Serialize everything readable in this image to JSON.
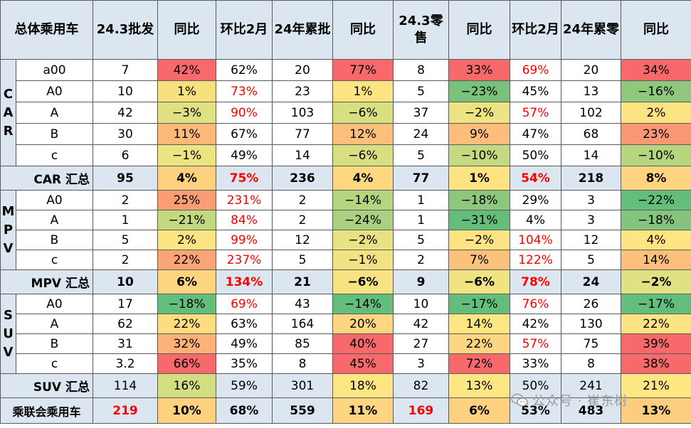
{
  "header": [
    "总体乘用车",
    "24.3批发",
    "同比",
    "环比2月",
    "24年累批",
    "同比",
    "24.3零售",
    "同比",
    "环比2月",
    "24年累零",
    "同比"
  ],
  "groups": [
    {
      "side": [
        "C",
        "A",
        "R"
      ],
      "rows": [
        {
          "label": "a00",
          "c": [
            {
              "v": "7"
            },
            {
              "v": "42%",
              "bg": "#f8696b"
            },
            {
              "v": "62%"
            },
            {
              "v": "20"
            },
            {
              "v": "77%",
              "bg": "#f8696b"
            },
            {
              "v": "8"
            },
            {
              "v": "33%",
              "bg": "#f8696b"
            },
            {
              "v": "69%",
              "red": true
            },
            {
              "v": "20"
            },
            {
              "v": "34%",
              "bg": "#f8696b"
            }
          ]
        },
        {
          "label": "A0",
          "c": [
            {
              "v": "10"
            },
            {
              "v": "1%",
              "bg": "#f9e07f"
            },
            {
              "v": "73%",
              "red": true
            },
            {
              "v": "23"
            },
            {
              "v": "1%",
              "bg": "#fde483"
            },
            {
              "v": "5"
            },
            {
              "v": "−23%",
              "bg": "#7ac17c"
            },
            {
              "v": "45%"
            },
            {
              "v": "13"
            },
            {
              "v": "−16%",
              "bg": "#8fc87d"
            }
          ]
        },
        {
          "label": "A",
          "c": [
            {
              "v": "42"
            },
            {
              "v": "−3%",
              "bg": "#dfe182"
            },
            {
              "v": "90%",
              "red": true
            },
            {
              "v": "103"
            },
            {
              "v": "−6%",
              "bg": "#d8df81"
            },
            {
              "v": "37"
            },
            {
              "v": "−2%",
              "bg": "#eee383"
            },
            {
              "v": "57%",
              "red": true
            },
            {
              "v": "102"
            },
            {
              "v": "2%",
              "bg": "#fee382"
            }
          ]
        },
        {
          "label": "B",
          "c": [
            {
              "v": "30"
            },
            {
              "v": "11%",
              "bg": "#fcb978"
            },
            {
              "v": "67%"
            },
            {
              "v": "77"
            },
            {
              "v": "12%",
              "bg": "#fdc07c"
            },
            {
              "v": "24"
            },
            {
              "v": "9%",
              "bg": "#fdbe7b"
            },
            {
              "v": "47%"
            },
            {
              "v": "68"
            },
            {
              "v": "23%",
              "bg": "#fa9774"
            }
          ]
        },
        {
          "label": "c",
          "c": [
            {
              "v": "6"
            },
            {
              "v": "−1%",
              "bg": "#ece382"
            },
            {
              "v": "49%"
            },
            {
              "v": "14"
            },
            {
              "v": "−6%",
              "bg": "#d8df81"
            },
            {
              "v": "5"
            },
            {
              "v": "−10%",
              "bg": "#c4d980"
            },
            {
              "v": "50%"
            },
            {
              "v": "14"
            },
            {
              "v": "−10%",
              "bg": "#b6d57f"
            }
          ]
        }
      ],
      "total": {
        "label": "CAR 汇总",
        "c": [
          {
            "v": "95"
          },
          {
            "v": "4%",
            "bg": "#fdd17f"
          },
          {
            "v": "75%",
            "red": true
          },
          {
            "v": "236"
          },
          {
            "v": "4%",
            "bg": "#fdd881"
          },
          {
            "v": "77"
          },
          {
            "v": "1%",
            "bg": "#fee382"
          },
          {
            "v": "54%",
            "red": true
          },
          {
            "v": "218"
          },
          {
            "v": "8%",
            "bg": "#fed480"
          }
        ]
      }
    },
    {
      "side": [
        "M",
        "P",
        "V"
      ],
      "rows": [
        {
          "label": "A0",
          "c": [
            {
              "v": "2"
            },
            {
              "v": "25%",
              "bg": "#fa9d75"
            },
            {
              "v": "231%",
              "red": true
            },
            {
              "v": "2"
            },
            {
              "v": "−14%",
              "bg": "#b6d57f"
            },
            {
              "v": "1"
            },
            {
              "v": "−18%",
              "bg": "#8cc77d"
            },
            {
              "v": "29%"
            },
            {
              "v": "3"
            },
            {
              "v": "−22%",
              "bg": "#63be7b"
            }
          ]
        },
        {
          "label": "A",
          "c": [
            {
              "v": "1"
            },
            {
              "v": "−21%",
              "bg": "#c3d980"
            },
            {
              "v": "84%",
              "red": true
            },
            {
              "v": "2"
            },
            {
              "v": "−24%",
              "bg": "#a9d17f"
            },
            {
              "v": "1"
            },
            {
              "v": "−31%",
              "bg": "#63be7b"
            },
            {
              "v": "4%"
            },
            {
              "v": "3"
            },
            {
              "v": "−18%",
              "bg": "#85c47c"
            }
          ]
        },
        {
          "label": "B",
          "c": [
            {
              "v": "5"
            },
            {
              "v": "2%",
              "bg": "#fde483"
            },
            {
              "v": "99%",
              "red": true
            },
            {
              "v": "12"
            },
            {
              "v": "−2%",
              "bg": "#e9e282"
            },
            {
              "v": "5"
            },
            {
              "v": "−2%",
              "bg": "#fee382"
            },
            {
              "v": "104%",
              "red": true
            },
            {
              "v": "12"
            },
            {
              "v": "4%",
              "bg": "#fee582"
            }
          ]
        },
        {
          "label": "c",
          "c": [
            {
              "v": "2"
            },
            {
              "v": "22%",
              "bg": "#fba476"
            },
            {
              "v": "237%",
              "red": true
            },
            {
              "v": "5"
            },
            {
              "v": "−1%",
              "bg": "#f1e383"
            },
            {
              "v": "2"
            },
            {
              "v": "7%",
              "bg": "#fcc27c"
            },
            {
              "v": "122%",
              "red": true
            },
            {
              "v": "5"
            },
            {
              "v": "14%",
              "bg": "#fcc07c"
            }
          ]
        }
      ],
      "total": {
        "label": "MPV 汇总",
        "c": [
          {
            "v": "10"
          },
          {
            "v": "6%",
            "bg": "#fdd47f"
          },
          {
            "v": "134%",
            "red": true
          },
          {
            "v": "21"
          },
          {
            "v": "−6%",
            "bg": "#f7e383"
          },
          {
            "v": "9"
          },
          {
            "v": "−6%",
            "bg": "#f0e482"
          },
          {
            "v": "78%",
            "red": true
          },
          {
            "v": "24"
          },
          {
            "v": "−2%",
            "bg": "#dfe182"
          }
        ]
      }
    },
    {
      "side": [
        "S",
        "U",
        "V"
      ],
      "rows": [
        {
          "label": "A0",
          "c": [
            {
              "v": "17"
            },
            {
              "v": "−18%",
              "bg": "#63be7b"
            },
            {
              "v": "69%",
              "red": true
            },
            {
              "v": "43"
            },
            {
              "v": "−14%",
              "bg": "#63be7b"
            },
            {
              "v": "10"
            },
            {
              "v": "−17%",
              "bg": "#63be7b"
            },
            {
              "v": "76%",
              "red": true
            },
            {
              "v": "26"
            },
            {
              "v": "−17%",
              "bg": "#63be7b"
            }
          ]
        },
        {
          "label": "A",
          "c": [
            {
              "v": "62"
            },
            {
              "v": "22%",
              "bg": "#fedd81"
            },
            {
              "v": "63%"
            },
            {
              "v": "164"
            },
            {
              "v": "20%",
              "bg": "#fed580"
            },
            {
              "v": "42"
            },
            {
              "v": "14%",
              "bg": "#fee683"
            },
            {
              "v": "42%"
            },
            {
              "v": "130"
            },
            {
              "v": "22%",
              "bg": "#fee382"
            }
          ]
        },
        {
          "label": "B",
          "c": [
            {
              "v": "31"
            },
            {
              "v": "32%",
              "bg": "#fcb279"
            },
            {
              "v": "49%"
            },
            {
              "v": "85"
            },
            {
              "v": "40%",
              "bg": "#f8696b"
            },
            {
              "v": "27"
            },
            {
              "v": "22%",
              "bg": "#fed580"
            },
            {
              "v": "57%",
              "red": true
            },
            {
              "v": "75"
            },
            {
              "v": "39%",
              "bg": "#f8696b"
            }
          ]
        },
        {
          "label": "c",
          "c": [
            {
              "v": "3.2"
            },
            {
              "v": "66%",
              "bg": "#f8696b"
            },
            {
              "v": "35%"
            },
            {
              "v": "8"
            },
            {
              "v": "45%",
              "bg": "#f8696b"
            },
            {
              "v": "3"
            },
            {
              "v": "72%",
              "bg": "#f8696b"
            },
            {
              "v": "33%"
            },
            {
              "v": "8"
            },
            {
              "v": "38%",
              "bg": "#f8696b"
            }
          ]
        }
      ],
      "total": {
        "label": "SUV 汇总",
        "c": [
          {
            "v": "114"
          },
          {
            "v": "16%",
            "bg": "#d3dd81"
          },
          {
            "v": "59%"
          },
          {
            "v": "301"
          },
          {
            "v": "18%",
            "bg": "#fee683"
          },
          {
            "v": "82"
          },
          {
            "v": "13%",
            "bg": "#fee683"
          },
          {
            "v": "50%"
          },
          {
            "v": "241"
          },
          {
            "v": "21%",
            "bg": "#fee683"
          }
        ]
      }
    }
  ],
  "grand": {
    "label": "乘联会乘用车",
    "c": [
      {
        "v": "219",
        "red": true,
        "big": true
      },
      {
        "v": "10%",
        "bg": "#fdd17f"
      },
      {
        "v": "68%"
      },
      {
        "v": "559"
      },
      {
        "v": "11%",
        "bg": "#fed581"
      },
      {
        "v": "169",
        "red": true,
        "big": true
      },
      {
        "v": "6%",
        "bg": "#fdd17f"
      },
      {
        "v": "53%"
      },
      {
        "v": "483"
      },
      {
        "v": "13%",
        "bg": "#fdcd7e"
      }
    ]
  },
  "watermark": "公众号 · 崔东树"
}
